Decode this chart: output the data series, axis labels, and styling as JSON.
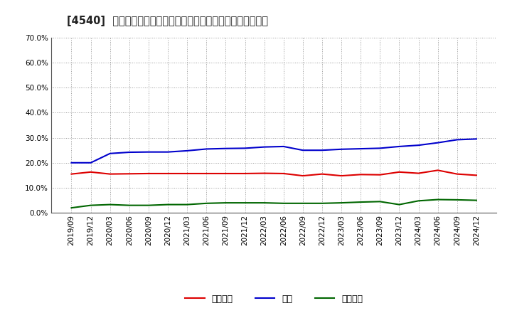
{
  "title": "[4540]  売上債権、在庫、買入債務の総資産に対する比率の推移",
  "x_labels": [
    "2019/09",
    "2019/12",
    "2020/03",
    "2020/06",
    "2020/09",
    "2020/12",
    "2021/03",
    "2021/06",
    "2021/09",
    "2021/12",
    "2022/03",
    "2022/06",
    "2022/09",
    "2022/12",
    "2023/03",
    "2023/06",
    "2023/09",
    "2023/12",
    "2024/03",
    "2024/06",
    "2024/09",
    "2024/12"
  ],
  "uriken": [
    0.155,
    0.163,
    0.155,
    0.156,
    0.157,
    0.157,
    0.157,
    0.157,
    0.157,
    0.157,
    0.158,
    0.157,
    0.148,
    0.155,
    0.148,
    0.153,
    0.152,
    0.163,
    0.158,
    0.17,
    0.155,
    0.15
  ],
  "zaiko": [
    0.2,
    0.2,
    0.237,
    0.242,
    0.243,
    0.243,
    0.248,
    0.255,
    0.257,
    0.258,
    0.263,
    0.265,
    0.25,
    0.25,
    0.254,
    0.256,
    0.258,
    0.265,
    0.27,
    0.28,
    0.292,
    0.295
  ],
  "kaiire": [
    0.02,
    0.03,
    0.033,
    0.03,
    0.03,
    0.033,
    0.033,
    0.038,
    0.04,
    0.04,
    0.04,
    0.038,
    0.038,
    0.038,
    0.04,
    0.043,
    0.045,
    0.033,
    0.048,
    0.053,
    0.052,
    0.05
  ],
  "uriken_color": "#dd0000",
  "zaiko_color": "#0000cc",
  "kaiire_color": "#006600",
  "ylim": [
    0.0,
    0.7
  ],
  "yticks": [
    0.0,
    0.1,
    0.2,
    0.3,
    0.4,
    0.5,
    0.6,
    0.7
  ],
  "legend_labels": [
    "売上債権",
    "在庫",
    "買入債務"
  ],
  "bg_color": "#ffffff",
  "plot_bg_color": "#ffffff",
  "grid_color": "#999999",
  "title_fontsize": 10.5,
  "tick_fontsize": 7.5,
  "line_width": 1.5
}
